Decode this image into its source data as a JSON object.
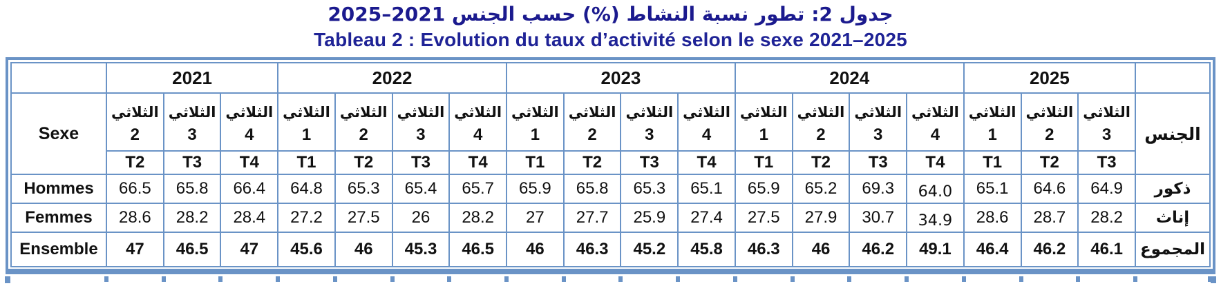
{
  "titles": {
    "arabic": "جدول 2: تطور نسبة النشاط (%) حسب الجنس 2021–2025",
    "french": "Tableau 2 : Evolution du taux d’activité selon le sexe 2021–2025"
  },
  "theme": {
    "title_arabic_color": "#1b1a8e",
    "title_french_color": "#1f2396",
    "table_border_color": "#6a93c6",
    "cell_text_color": "#111111"
  },
  "table": {
    "corner_label": "Sexe",
    "corner_label_ar": "الجنس",
    "quarter_word_ar": "الثلاثي",
    "years": [
      {
        "label": "2021",
        "quarters": [
          "2",
          "3",
          "4"
        ]
      },
      {
        "label": "2022",
        "quarters": [
          "1",
          "2",
          "3",
          "4"
        ]
      },
      {
        "label": "2023",
        "quarters": [
          "1",
          "2",
          "3",
          "4"
        ]
      },
      {
        "label": "2024",
        "quarters": [
          "1",
          "2",
          "3",
          "4"
        ]
      },
      {
        "label": "2025",
        "quarters": [
          "1",
          "2",
          "3"
        ]
      }
    ],
    "t_labels": [
      "T2",
      "T3",
      "T4",
      "T1",
      "T2",
      "T3",
      "T4",
      "T1",
      "T2",
      "T3",
      "T4",
      "T1",
      "T2",
      "T3",
      "T4",
      "T1",
      "T2",
      "T3"
    ],
    "rows": [
      {
        "label": "Hommes",
        "label_ar": "ذكور",
        "bold_values": false,
        "values": [
          "66.5",
          "65.8",
          "66.4",
          "64.8",
          "65.3",
          "65.4",
          "65.7",
          "65.9",
          "65.8",
          "65.3",
          "65.1",
          "65.9",
          "65.2",
          "69.3",
          "64.0",
          "65.1",
          "64.6",
          "64.9"
        ]
      },
      {
        "label": "Femmes",
        "label_ar": "إناث",
        "bold_values": false,
        "values": [
          "28.6",
          "28.2",
          "28.4",
          "27.2",
          "27.5",
          "26",
          "28.2",
          "27",
          "27.7",
          "25.9",
          "27.4",
          "27.5",
          "27.9",
          "30.7",
          "34.9",
          "28.6",
          "28.7",
          "28.2"
        ]
      },
      {
        "label": "Ensemble",
        "label_ar": "المجموع",
        "bold_values": true,
        "values": [
          "47",
          "46.5",
          "47",
          "45.6",
          "46",
          "45.3",
          "46.5",
          "46",
          "46.3",
          "45.2",
          "45.8",
          "46.3",
          "46",
          "46.2",
          "49.1",
          "46.4",
          "46.2",
          "46.1"
        ]
      }
    ]
  }
}
